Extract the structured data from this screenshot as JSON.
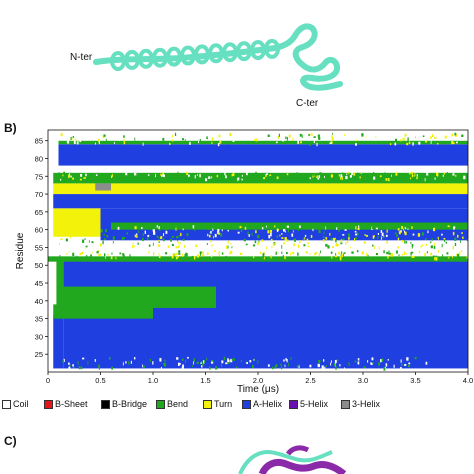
{
  "panel_a": {
    "nter_label": "N-ter",
    "cter_label": "C-ter",
    "colors": {
      "cartoon": "#66e0c0",
      "cartoon_edge": "#2ea88a"
    }
  },
  "panel_b": {
    "label": "B)"
  },
  "panel_c": {
    "label": "C)",
    "colors": {
      "helix": "#8b2aa8",
      "coil": "#66e0c0"
    }
  },
  "chart_data": {
    "type": "heatmap",
    "xlabel": "Time (μs)",
    "ylabel": "Residue",
    "xlim": [
      0,
      4.0
    ],
    "ylim": [
      20,
      88
    ],
    "xticks": [
      "0",
      "0.5",
      "1.0",
      "1.5",
      "2.0",
      "2.5",
      "3.0",
      "3.5",
      "4.0"
    ],
    "yticks": [
      "25",
      "30",
      "35",
      "40",
      "45",
      "50",
      "55",
      "60",
      "65",
      "70",
      "75",
      "80",
      "85"
    ],
    "legend": [
      {
        "name": "Coil",
        "color": "#ffffff"
      },
      {
        "name": "B-Sheet",
        "color": "#e8141c"
      },
      {
        "name": "B-Bridge",
        "color": "#000000"
      },
      {
        "name": "Bend",
        "color": "#22a81e"
      },
      {
        "name": "Turn",
        "color": "#f2f20a"
      },
      {
        "name": "A-Helix",
        "color": "#1f3fe0"
      },
      {
        "name": "5-Helix",
        "color": "#6a12b0"
      },
      {
        "name": "3-Helix",
        "color": "#8c8c8c"
      }
    ],
    "regions": [
      {
        "res": [
          21,
          52
        ],
        "t": [
          0.15,
          4.0
        ],
        "state": "A-Helix"
      },
      {
        "res": [
          21,
          36
        ],
        "t": [
          0.05,
          0.15
        ],
        "state": "A-Helix"
      },
      {
        "res": [
          38,
          52
        ],
        "t": [
          0.08,
          1.6
        ],
        "state": "Bend"
      },
      {
        "res": [
          44,
          52
        ],
        "t": [
          0.15,
          1.65
        ],
        "state": "A-Helix"
      },
      {
        "res": [
          35.5,
          38
        ],
        "t": [
          0.07,
          0.95
        ],
        "state": "Coil"
      },
      {
        "res": [
          35,
          39
        ],
        "t": [
          0.05,
          1.0
        ],
        "state": "Bend"
      },
      {
        "res": [
          51,
          52.5
        ],
        "t": [
          0,
          4.0
        ],
        "state": "Bend"
      },
      {
        "res": [
          53,
          57
        ],
        "t": [
          0,
          4.0
        ],
        "state": "Coil"
      },
      {
        "res": [
          57,
          66
        ],
        "t": [
          0.5,
          4.0
        ],
        "state": "A-Helix"
      },
      {
        "res": [
          60,
          62
        ],
        "t": [
          0.6,
          4.0
        ],
        "state": "Bend"
      },
      {
        "res": [
          61,
          64
        ],
        "t": [
          0.12,
          0.4
        ],
        "state": "B-Bridge"
      },
      {
        "res": [
          62,
          63
        ],
        "t": [
          0.12,
          0.4
        ],
        "state": "B-Sheet"
      },
      {
        "res": [
          58,
          66
        ],
        "t": [
          0.05,
          0.5
        ],
        "state": "Turn"
      },
      {
        "res": [
          66,
          70
        ],
        "t": [
          0.05,
          4.0
        ],
        "state": "A-Helix"
      },
      {
        "res": [
          70,
          73
        ],
        "t": [
          0.05,
          4.0
        ],
        "state": "Turn"
      },
      {
        "res": [
          71,
          73
        ],
        "t": [
          0.45,
          0.6
        ],
        "state": "3-Helix"
      },
      {
        "res": [
          73,
          76
        ],
        "t": [
          0.05,
          4.0
        ],
        "state": "Bend"
      },
      {
        "res": [
          76,
          78
        ],
        "t": [
          0,
          4.0
        ],
        "state": "Coil"
      },
      {
        "res": [
          78,
          84
        ],
        "t": [
          0.1,
          4.0
        ],
        "state": "A-Helix"
      },
      {
        "res": [
          84,
          85
        ],
        "t": [
          0.1,
          4.0
        ],
        "state": "Bend"
      },
      {
        "res": [
          85,
          87
        ],
        "t": [
          0,
          4.0
        ],
        "state": "Coil"
      }
    ]
  }
}
